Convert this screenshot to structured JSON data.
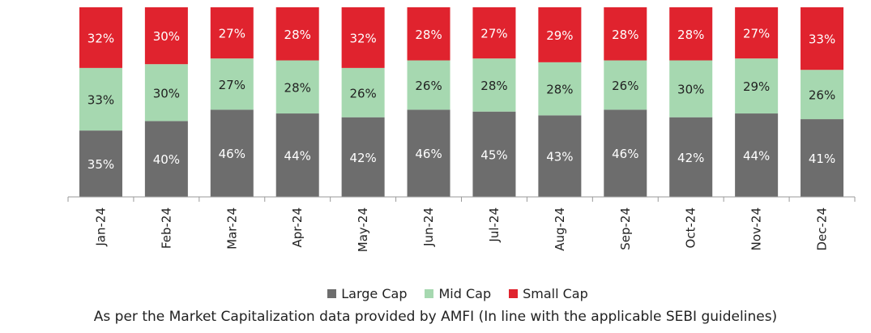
{
  "chart_data": {
    "type": "bar",
    "stacked": true,
    "categories": [
      "Jan-24",
      "Feb-24",
      "Mar-24",
      "Apr-24",
      "May-24",
      "Jun-24",
      "Jul-24",
      "Aug-24",
      "Sep-24",
      "Oct-24",
      "Nov-24",
      "Dec-24"
    ],
    "series": [
      {
        "name": "Large Cap",
        "color": "#6d6d6d",
        "values": [
          35,
          40,
          46,
          44,
          42,
          46,
          45,
          43,
          46,
          42,
          44,
          41
        ]
      },
      {
        "name": "Mid Cap",
        "color": "#a6d8b0",
        "values": [
          33,
          30,
          27,
          28,
          26,
          26,
          28,
          28,
          26,
          30,
          29,
          26
        ]
      },
      {
        "name": "Small Cap",
        "color": "#e0232e",
        "values": [
          32,
          30,
          27,
          28,
          32,
          28,
          27,
          29,
          28,
          28,
          27,
          33
        ]
      }
    ],
    "value_suffix": "%",
    "ylim": [
      0,
      100
    ],
    "grid": false,
    "legend_position": "bottom"
  },
  "footnote": "As per the Market Capitalization data provided by AMFI (In line with the applicable SEBI guidelines)"
}
